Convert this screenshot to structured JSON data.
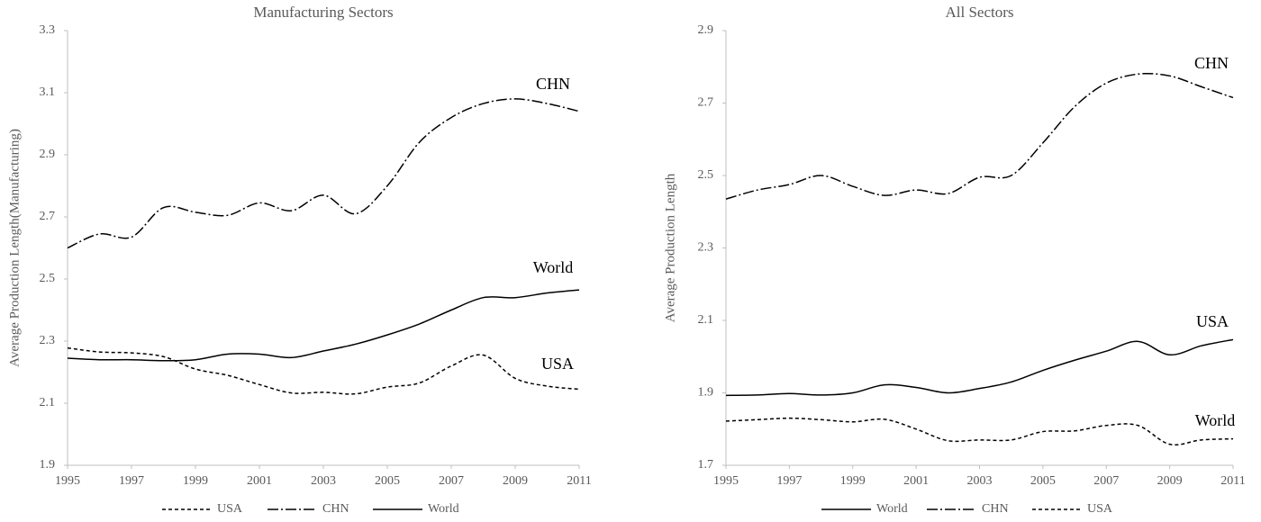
{
  "chart_data": [
    {
      "type": "line",
      "title": "Manufacturing Sectors",
      "y_label": "Average Production Length(Manufacturing)",
      "x": [
        1995,
        1996,
        1997,
        1998,
        1999,
        2000,
        2001,
        2002,
        2003,
        2004,
        2005,
        2006,
        2007,
        2008,
        2009,
        2010,
        2011
      ],
      "xlim": [
        1995,
        2011
      ],
      "xticks": [
        1995,
        1997,
        1999,
        2001,
        2003,
        2005,
        2007,
        2009,
        2011
      ],
      "ylim": [
        1.9,
        3.3
      ],
      "yticks": [
        1.9,
        2.1,
        2.3,
        2.5,
        2.7,
        2.9,
        3.1,
        3.3
      ],
      "legend": "bottom",
      "series": [
        {
          "name": "USA",
          "color": "#000000",
          "dash": "dashed",
          "values": [
            2.278,
            2.265,
            2.262,
            2.25,
            2.21,
            2.19,
            2.16,
            2.133,
            2.135,
            2.13,
            2.152,
            2.165,
            2.22,
            2.255,
            2.18,
            2.155,
            2.145
          ]
        },
        {
          "name": "CHN",
          "color": "#000000",
          "dash": "dashdot",
          "values": [
            2.6,
            2.645,
            2.635,
            2.73,
            2.715,
            2.705,
            2.745,
            2.72,
            2.77,
            2.71,
            2.8,
            2.94,
            3.02,
            3.065,
            3.08,
            3.065,
            3.04
          ]
        },
        {
          "name": "World",
          "color": "#000000",
          "dash": "solid",
          "values": [
            2.245,
            2.24,
            2.24,
            2.237,
            2.24,
            2.258,
            2.258,
            2.247,
            2.268,
            2.29,
            2.32,
            2.355,
            2.4,
            2.44,
            2.44,
            2.455,
            2.465
          ]
        }
      ]
    },
    {
      "type": "line",
      "title": "All Sectors",
      "y_label": "Average Production Length",
      "x": [
        1995,
        1996,
        1997,
        1998,
        1999,
        2000,
        2001,
        2002,
        2003,
        2004,
        2005,
        2006,
        2007,
        2008,
        2009,
        2010,
        2011
      ],
      "xlim": [
        1995,
        2011
      ],
      "xticks": [
        1995,
        1997,
        1999,
        2001,
        2003,
        2005,
        2007,
        2009,
        2011
      ],
      "ylim": [
        1.7,
        2.9
      ],
      "yticks": [
        1.7,
        1.9,
        2.1,
        2.3,
        2.5,
        2.7,
        2.9
      ],
      "legend": "bottom",
      "series": [
        {
          "name": "World",
          "color": "#000000",
          "dash": "solid",
          "values": [
            1.893,
            1.894,
            1.898,
            1.894,
            1.9,
            1.922,
            1.915,
            1.9,
            1.912,
            1.93,
            1.962,
            1.99,
            2.015,
            2.042,
            2.005,
            2.03,
            2.047
          ]
        },
        {
          "name": "CHN",
          "color": "#000000",
          "dash": "dashdot",
          "values": [
            2.435,
            2.46,
            2.475,
            2.5,
            2.47,
            2.445,
            2.46,
            2.45,
            2.495,
            2.5,
            2.59,
            2.69,
            2.755,
            2.78,
            2.775,
            2.745,
            2.715
          ]
        },
        {
          "name": "USA",
          "color": "#000000",
          "dash": "dashed",
          "values": [
            1.822,
            1.826,
            1.83,
            1.826,
            1.82,
            1.827,
            1.8,
            1.768,
            1.77,
            1.77,
            1.793,
            1.795,
            1.81,
            1.81,
            1.758,
            1.77,
            1.773
          ]
        }
      ]
    }
  ]
}
